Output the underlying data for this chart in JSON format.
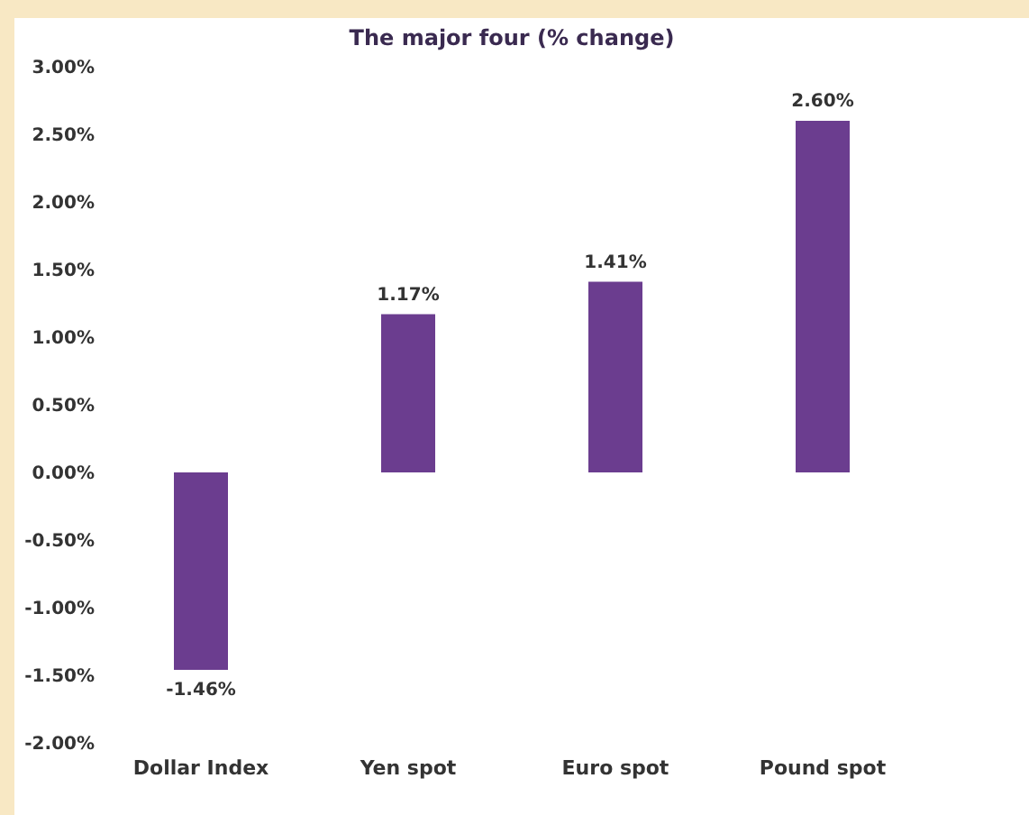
{
  "chart_data": {
    "type": "bar",
    "title": "The major four (% change)",
    "categories": [
      "Dollar Index",
      "Yen spot",
      "Euro spot",
      "Pound spot"
    ],
    "values": [
      -1.46,
      1.17,
      1.41,
      2.6
    ],
    "value_labels": [
      "-1.46%",
      "1.17%",
      "1.41%",
      "2.60%"
    ],
    "color": "#6b3d8f",
    "ylim": [
      -2,
      3
    ],
    "yticks": [
      {
        "value": -2,
        "label": "-2.00%"
      },
      {
        "value": -1.5,
        "label": "-1.50%"
      },
      {
        "value": -1,
        "label": "-1.00%"
      },
      {
        "value": -0.5,
        "label": "-0.50%"
      },
      {
        "value": 0,
        "label": "0.00%"
      },
      {
        "value": 0.5,
        "label": "0.50%"
      },
      {
        "value": 1,
        "label": "1.00%"
      },
      {
        "value": 1.5,
        "label": "1.50%"
      },
      {
        "value": 2,
        "label": "2.00%"
      },
      {
        "value": 2.5,
        "label": "2.50%"
      },
      {
        "value": 3,
        "label": "3.00%"
      }
    ],
    "grid": false
  }
}
